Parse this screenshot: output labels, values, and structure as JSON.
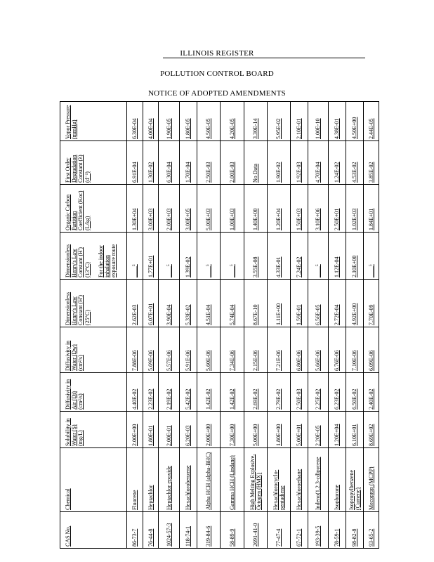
{
  "header": {
    "register": "ILLINOIS REGISTER",
    "board": "POLLUTION CONTROL BOARD",
    "notice": "NOTICE OF ADOPTED AMENDMENTS"
  },
  "table": {
    "columns": [
      {
        "label": "CAS No."
      },
      {
        "label": "Chemical"
      },
      {
        "label": "Solubility in Water (S) (mg/L)"
      },
      {
        "label": "Diffusivity in Air (Di) (cm²/s)"
      },
      {
        "label": "Diffusivity in Water (Dw) (cm²/s)"
      },
      {
        "label": "Dimensionless Henry's Law Constant (H') (25°C)"
      },
      {
        "label": "Dimensionless Henry's Law Constant (H') (13°C)",
        "note": "For the indoor inhalation exposure route"
      },
      {
        "label": "Organic Carbon Partition Coefficient (Koc) (L/kg)"
      },
      {
        "label": "First Order Degradation Constant (λ) (d⁻¹)"
      },
      {
        "label": "Vapor Pressure (mmHg)"
      }
    ],
    "rows": [
      [
        "86-73-7",
        "Fluorene",
        "2.00E+00",
        "4.40E-02",
        "7.88E-06",
        "2.62E-03",
        "____⁵",
        "1.30E+04",
        "6.91E-04",
        "6.30E-04"
      ],
      [
        "76-44-8",
        "Heptachlor",
        "1.80E-01",
        "2.23E-02",
        "5.69E-06",
        "6.07E+01",
        "1.77E+01",
        "3.00E+03",
        "1.30E-02",
        "4.00E-04"
      ],
      [
        "1024-57-3",
        "Heptachlor epoxide",
        "2.00E-01",
        "2.19E-02",
        "5.57E-06",
        "3.90E-04",
        "____⁵",
        "2.00E+03",
        "6.30E-04",
        "1.90E-05"
      ],
      [
        "118-74-1",
        "Hexachlorobenzene",
        "6.20E-03",
        "5.42E-02",
        "5.91E-06",
        "5.33E-02",
        "1.39E-02",
        "3.00E+05",
        "1.70E-04",
        "1.80E-05"
      ],
      [
        "319-84-6",
        "Alpha HCH (alpha-BHC)",
        "2.00E+00",
        "1.42E-02",
        "5.60E-06",
        "4.51E-04",
        "____⁵",
        "5.00E+03",
        "2.50E-03",
        "4.50E-05"
      ],
      [
        "58-89-9",
        "Gamma HCH (Lindane)",
        "7.30E+00",
        "1.42E-02",
        "7.34E-06",
        "5.74E-04",
        "____⁵",
        "1.00E+03",
        "2.00E-03",
        "4.20E-05"
      ],
      [
        "2691-41-0",
        "High Melting Explosive, Octogen (HMX)",
        "5.00E+00",
        "2.69E-02",
        "2.15E-06",
        "8.67E-10",
        "3.55E-08",
        "1.40E+00",
        "No Data",
        "3.30E-14"
      ],
      [
        "77-47-4",
        "Hexachlorocyclo-pentadiene",
        "1.80E+00",
        "2.79E-02",
        "7.21E-06",
        "1.11E+00",
        "4.33E-01",
        "1.20E+04",
        "1.90E-02",
        "5.95E-02"
      ],
      [
        "67-72-1",
        "Hexachloroethane",
        "5.00E+01",
        "2.50E-03",
        "6.80E-06",
        "1.59E-01",
        "7.24E-02",
        "1.50E+03",
        "1.92E-03",
        "2.10E-01"
      ],
      [
        "193-39-5",
        "Indeno(1,2,3-cd)pyrene",
        "2.20E-05",
        "2.25E-02",
        "5.66E-06",
        "6.56E-05",
        "____⁵",
        "3.10E+06",
        "4.70E-04",
        "1.00E-10"
      ],
      [
        "78-59-1",
        "Isophorone",
        "1.20E+04",
        "6.23E-02",
        "6.76E-06",
        "2.72E-04",
        "1.12E-04",
        "2.50E+01",
        "1.24E-02",
        "4.38E-01"
      ],
      [
        "98-82-8",
        "Isopropylbenzene (Cumene)",
        "6.10E+01",
        "6.50E-02",
        "7.10E-06",
        "4.92E+00",
        "2.10E+00",
        "1.02E+03",
        "4.53E-02",
        "4.50E+00"
      ],
      [
        "93-65-2",
        "Mecoprop (MCPP)",
        "8.69E+02",
        "2.40E-02",
        "6.09E-06",
        "7.70E-09",
        "____⁵",
        "1.84E+01",
        "3.85E-02",
        "2.44E-05"
      ]
    ]
  }
}
